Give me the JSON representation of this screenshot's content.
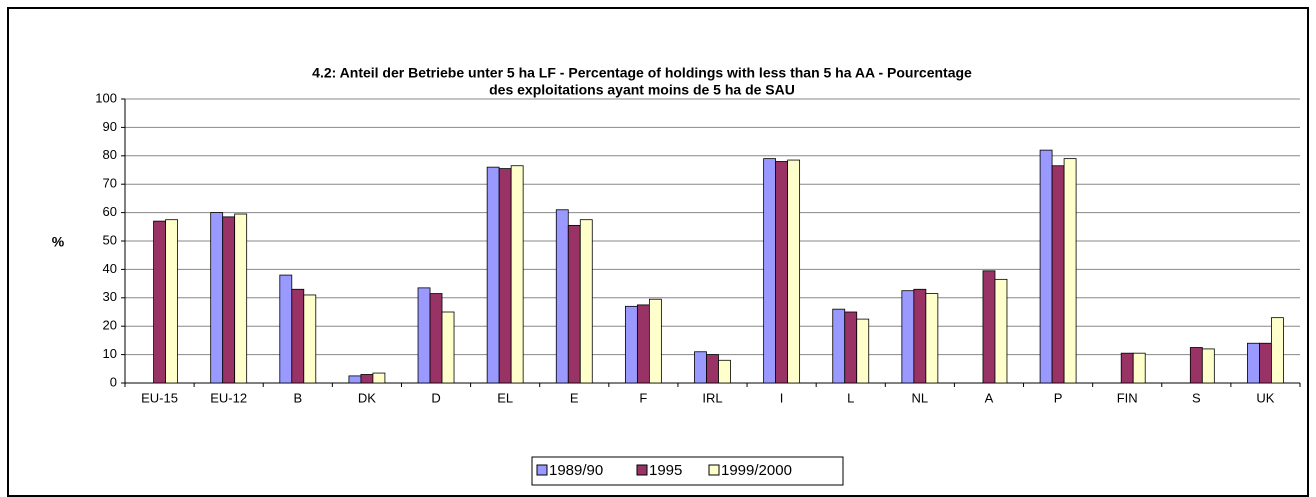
{
  "chart_data": {
    "type": "bar",
    "title": [
      "4.2:   Anteil der Betriebe unter 5 ha LF - Percentage of holdings with less than 5 ha AA - Pourcentage",
      "des exploitations ayant moins de 5 ha de SAU"
    ],
    "y_label": "%",
    "categories": [
      "EU-15",
      "EU-12",
      "B",
      "DK",
      "D",
      "EL",
      "E",
      "F",
      "IRL",
      "I",
      "L",
      "NL",
      "A",
      "P",
      "FIN",
      "S",
      "UK"
    ],
    "series": [
      {
        "name": "1989/90",
        "color": "#9999ff",
        "values": [
          null,
          60,
          38,
          2.5,
          33.5,
          76,
          61,
          27,
          11,
          79,
          26,
          32.5,
          null,
          82,
          null,
          null,
          14
        ]
      },
      {
        "name": "1995",
        "color": "#993366",
        "values": [
          57,
          58.5,
          33,
          3,
          31.5,
          75.5,
          55.5,
          27.5,
          10,
          78,
          25,
          33,
          39.5,
          76.5,
          10.5,
          12.5,
          14
        ]
      },
      {
        "name": "1999/2000",
        "color": "#ffffcc",
        "values": [
          57.5,
          59.5,
          31,
          3.5,
          25,
          76.5,
          57.5,
          29.5,
          8,
          78.5,
          22.5,
          31.5,
          36.5,
          79,
          10.5,
          12,
          23
        ]
      }
    ],
    "ylim": [
      0,
      100
    ],
    "yticks": [
      0,
      10,
      20,
      30,
      40,
      50,
      60,
      70,
      80,
      90,
      100
    ],
    "grid": true,
    "legend": "bottom"
  }
}
